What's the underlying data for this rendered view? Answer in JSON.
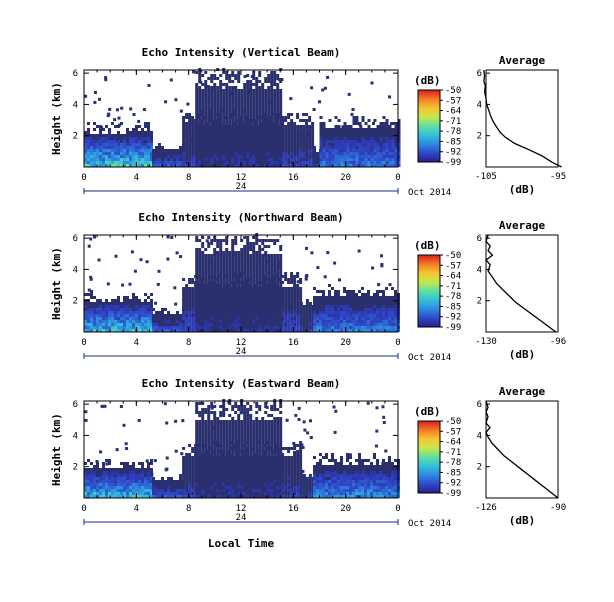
{
  "chart_data": [
    {
      "type": "heatmap",
      "title": "Echo Intensity (Vertical Beam)",
      "ylabel": "Height (km)",
      "xlabel": "",
      "x_ticks": [
        "0",
        "4",
        "8",
        "12",
        "16",
        "20",
        "0"
      ],
      "y_ticks": [
        "6",
        "4",
        "2"
      ],
      "date_day": "24",
      "date_month": "Oct 2014",
      "xlim_hours": [
        0,
        24
      ],
      "ylim_km": [
        0,
        6.2
      ],
      "colorbar": {
        "unit": "(dB)",
        "ticks": [
          "-50",
          "-57",
          "-64",
          "-71",
          "-78",
          "-85",
          "-92",
          "-99"
        ]
      },
      "regions": [
        {
          "hours": [
            0,
            5.2
          ],
          "top_km": 2.6,
          "max_intensity": 0.55
        },
        {
          "hours": [
            5.2,
            7.5
          ],
          "top_km": 1.2,
          "max_intensity": 0.2
        },
        {
          "hours": [
            7.5,
            17.5
          ],
          "top_km": 3.3,
          "max_intensity": 0.12
        },
        {
          "hours": [
            8.5,
            15
          ],
          "top_km": 6.0,
          "max_intensity": 0.08
        },
        {
          "hours": [
            17.5,
            18
          ],
          "top_km": 1.0,
          "max_intensity": 0.1
        },
        {
          "hours": [
            18,
            24
          ],
          "top_km": 3.0,
          "max_intensity": 0.3
        }
      ],
      "profile": {
        "title": "Average",
        "xlabel": "(dB)",
        "x_ticks": [
          "-105",
          "-95"
        ],
        "y_ticks": [
          "6",
          "4",
          "2"
        ],
        "x_db": [
          -94.5,
          -95.8,
          -97.2,
          -99.0,
          -101.0,
          -102.3,
          -103.0,
          -103.6,
          -104.0,
          -104.3,
          -104.6,
          -104.9,
          -105.0,
          -105.2,
          -105.1,
          -105.3,
          -105.2,
          -105.3
        ],
        "y_km": [
          0.0,
          0.3,
          0.7,
          1.1,
          1.5,
          1.9,
          2.2,
          2.6,
          2.9,
          3.2,
          3.6,
          4.0,
          4.4,
          4.8,
          5.2,
          5.5,
          5.8,
          6.2
        ]
      }
    },
    {
      "type": "heatmap",
      "title": "Echo Intensity (Northward Beam)",
      "ylabel": "Height (km)",
      "xlabel": "",
      "x_ticks": [
        "0",
        "4",
        "8",
        "12",
        "16",
        "20",
        "0"
      ],
      "y_ticks": [
        "6",
        "4",
        "2"
      ],
      "date_day": "24",
      "date_month": "Oct 2014",
      "xlim_hours": [
        0,
        24
      ],
      "ylim_km": [
        0,
        6.2
      ],
      "colorbar": {
        "unit": "(dB)",
        "ticks": [
          "-50",
          "-57",
          "-64",
          "-71",
          "-78",
          "-85",
          "-92",
          "-99"
        ]
      },
      "regions": [
        {
          "hours": [
            0,
            5.2
          ],
          "top_km": 2.3,
          "max_intensity": 0.5
        },
        {
          "hours": [
            5.2,
            7.5
          ],
          "top_km": 1.3,
          "max_intensity": 0.2
        },
        {
          "hours": [
            7.5,
            16.5
          ],
          "top_km": 3.5,
          "max_intensity": 0.15
        },
        {
          "hours": [
            8.5,
            15
          ],
          "top_km": 6.0,
          "max_intensity": 0.08
        },
        {
          "hours": [
            16.5,
            17.5
          ],
          "top_km": 2.0,
          "max_intensity": 0.1
        },
        {
          "hours": [
            17.5,
            24
          ],
          "top_km": 2.7,
          "max_intensity": 0.3
        }
      ],
      "profile": {
        "title": "Average",
        "xlabel": "(dB)",
        "x_ticks": [
          "-130",
          "-96"
        ],
        "y_ticks": [
          "6",
          "4",
          "2"
        ],
        "x_db": [
          -97.0,
          -100.0,
          -104.0,
          -108.0,
          -112.0,
          -116.0,
          -119.0,
          -122.0,
          -125.0,
          -127.0,
          -129.0,
          -128.0,
          -130.0,
          -127.0,
          -129.0,
          -128.0,
          -130.0,
          -129.0
        ],
        "y_km": [
          0.0,
          0.3,
          0.7,
          1.1,
          1.5,
          1.9,
          2.3,
          2.7,
          3.1,
          3.5,
          3.9,
          4.3,
          4.6,
          4.9,
          5.2,
          5.5,
          5.8,
          6.2
        ]
      }
    },
    {
      "type": "heatmap",
      "title": "Echo Intensity (Eastward Beam)",
      "ylabel": "Height (km)",
      "xlabel": "Local Time",
      "x_ticks": [
        "0",
        "4",
        "8",
        "12",
        "16",
        "20",
        "0"
      ],
      "y_ticks": [
        "6",
        "4",
        "2"
      ],
      "date_day": "24",
      "date_month": "Oct 2014",
      "xlim_hours": [
        0,
        24
      ],
      "ylim_km": [
        0,
        6.2
      ],
      "colorbar": {
        "unit": "(dB)",
        "ticks": [
          "-50",
          "-57",
          "-64",
          "-71",
          "-78",
          "-85",
          "-92",
          "-99"
        ]
      },
      "regions": [
        {
          "hours": [
            0,
            5.2
          ],
          "top_km": 2.2,
          "max_intensity": 0.5
        },
        {
          "hours": [
            5.2,
            7.5
          ],
          "top_km": 1.2,
          "max_intensity": 0.2
        },
        {
          "hours": [
            7.5,
            16.5
          ],
          "top_km": 3.3,
          "max_intensity": 0.12
        },
        {
          "hours": [
            8.5,
            15
          ],
          "top_km": 6.0,
          "max_intensity": 0.08
        },
        {
          "hours": [
            16.5,
            17.5
          ],
          "top_km": 1.5,
          "max_intensity": 0.1
        },
        {
          "hours": [
            17.5,
            24
          ],
          "top_km": 2.6,
          "max_intensity": 0.35
        }
      ],
      "profile": {
        "title": "Average",
        "xlabel": "(dB)",
        "x_ticks": [
          "-126",
          "-90"
        ],
        "y_ticks": [
          "6",
          "4",
          "2"
        ],
        "x_db": [
          -90.0,
          -93.0,
          -97.0,
          -101.0,
          -105.0,
          -109.0,
          -113.0,
          -117.0,
          -120.0,
          -123.0,
          -125.0,
          -126.0,
          -124.0,
          -126.0,
          -125.0,
          -126.0,
          -125.0,
          -126.0
        ],
        "y_km": [
          0.0,
          0.3,
          0.7,
          1.1,
          1.5,
          1.9,
          2.3,
          2.7,
          3.1,
          3.5,
          3.9,
          4.2,
          4.5,
          4.8,
          5.2,
          5.5,
          5.8,
          6.2
        ]
      }
    }
  ],
  "colors": {
    "background": "#ffffff",
    "axis": "#000000",
    "base_echo": "#2a2f6e",
    "date_line": "#1a2a8a",
    "colormap": [
      "#2a1e8a",
      "#2f49c8",
      "#2d8ae0",
      "#35c0d8",
      "#5ee0a0",
      "#c6e84c",
      "#f4c630",
      "#f47a28",
      "#d81e1e"
    ]
  }
}
